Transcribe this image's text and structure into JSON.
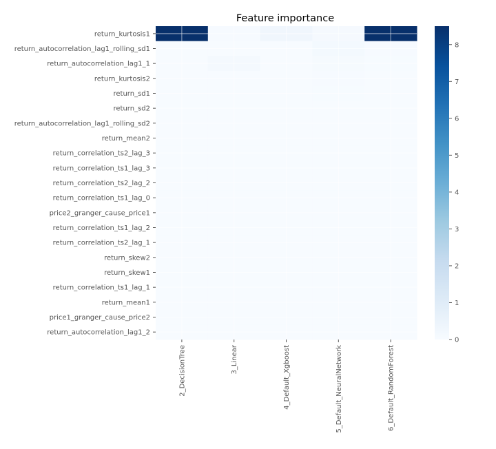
{
  "chart_data": {
    "type": "heatmap",
    "title": "Feature importance",
    "xlabel": "",
    "ylabel": "",
    "columns": [
      "2_DecisionTree",
      "3_Linear",
      "4_Default_Xgboost",
      "5_Default_NeuralNetwork",
      "6_Default_RandomForest"
    ],
    "rows": [
      "return_kurtosis1",
      "return_autocorrelation_lag1_rolling_sd1",
      "return_autocorrelation_lag1_1",
      "return_kurtosis2",
      "return_sd1",
      "return_sd2",
      "return_autocorrelation_lag1_rolling_sd2",
      "return_mean2",
      "return_correlation_ts2_lag_3",
      "return_correlation_ts1_lag_3",
      "return_correlation_ts2_lag_2",
      "return_correlation_ts1_lag_0",
      "price2_granger_cause_price1",
      "return_correlation_ts1_lag_2",
      "return_correlation_ts2_lag_1",
      "return_skew2",
      "return_skew1",
      "return_correlation_ts1_lag_1",
      "return_mean1",
      "price1_granger_cause_price2",
      "return_autocorrelation_lag1_2"
    ],
    "values": [
      [
        8.5,
        0.05,
        0.3,
        0.1,
        8.5
      ],
      [
        0.0,
        0.0,
        0.0,
        0.15,
        0.05
      ],
      [
        0.0,
        0.12,
        0.0,
        0.08,
        0.03
      ],
      [
        0.0,
        0.0,
        0.0,
        0.05,
        0.02
      ],
      [
        0.0,
        0.0,
        0.0,
        0.03,
        0.02
      ],
      [
        0.0,
        0.0,
        0.0,
        0.02,
        0.01
      ],
      [
        0.0,
        0.0,
        0.0,
        0.01,
        0.01
      ],
      [
        0.0,
        0.0,
        0.0,
        0.01,
        0.01
      ],
      [
        0.0,
        0.0,
        0.0,
        0.01,
        0.0
      ],
      [
        0.0,
        0.0,
        0.0,
        0.01,
        0.0
      ],
      [
        0.0,
        0.0,
        0.0,
        0.0,
        0.0
      ],
      [
        0.0,
        0.0,
        0.0,
        0.0,
        0.0
      ],
      [
        0.0,
        0.0,
        0.0,
        0.0,
        0.0
      ],
      [
        0.0,
        0.0,
        0.0,
        0.0,
        0.0
      ],
      [
        0.0,
        0.0,
        0.0,
        0.0,
        0.0
      ],
      [
        0.0,
        0.0,
        0.0,
        0.0,
        0.0
      ],
      [
        0.0,
        0.0,
        0.0,
        0.0,
        0.0
      ],
      [
        0.0,
        0.0,
        0.0,
        0.0,
        0.0
      ],
      [
        0.0,
        0.0,
        0.0,
        0.0,
        0.0
      ],
      [
        0.0,
        0.0,
        0.0,
        0.0,
        0.0
      ],
      [
        0.0,
        0.0,
        0.0,
        0.0,
        0.0
      ]
    ],
    "colorbar": {
      "min": 0,
      "max": 8.5,
      "ticks": [
        0,
        1,
        2,
        3,
        4,
        5,
        6,
        7,
        8
      ]
    },
    "colormap": "Blues",
    "grid": true
  }
}
